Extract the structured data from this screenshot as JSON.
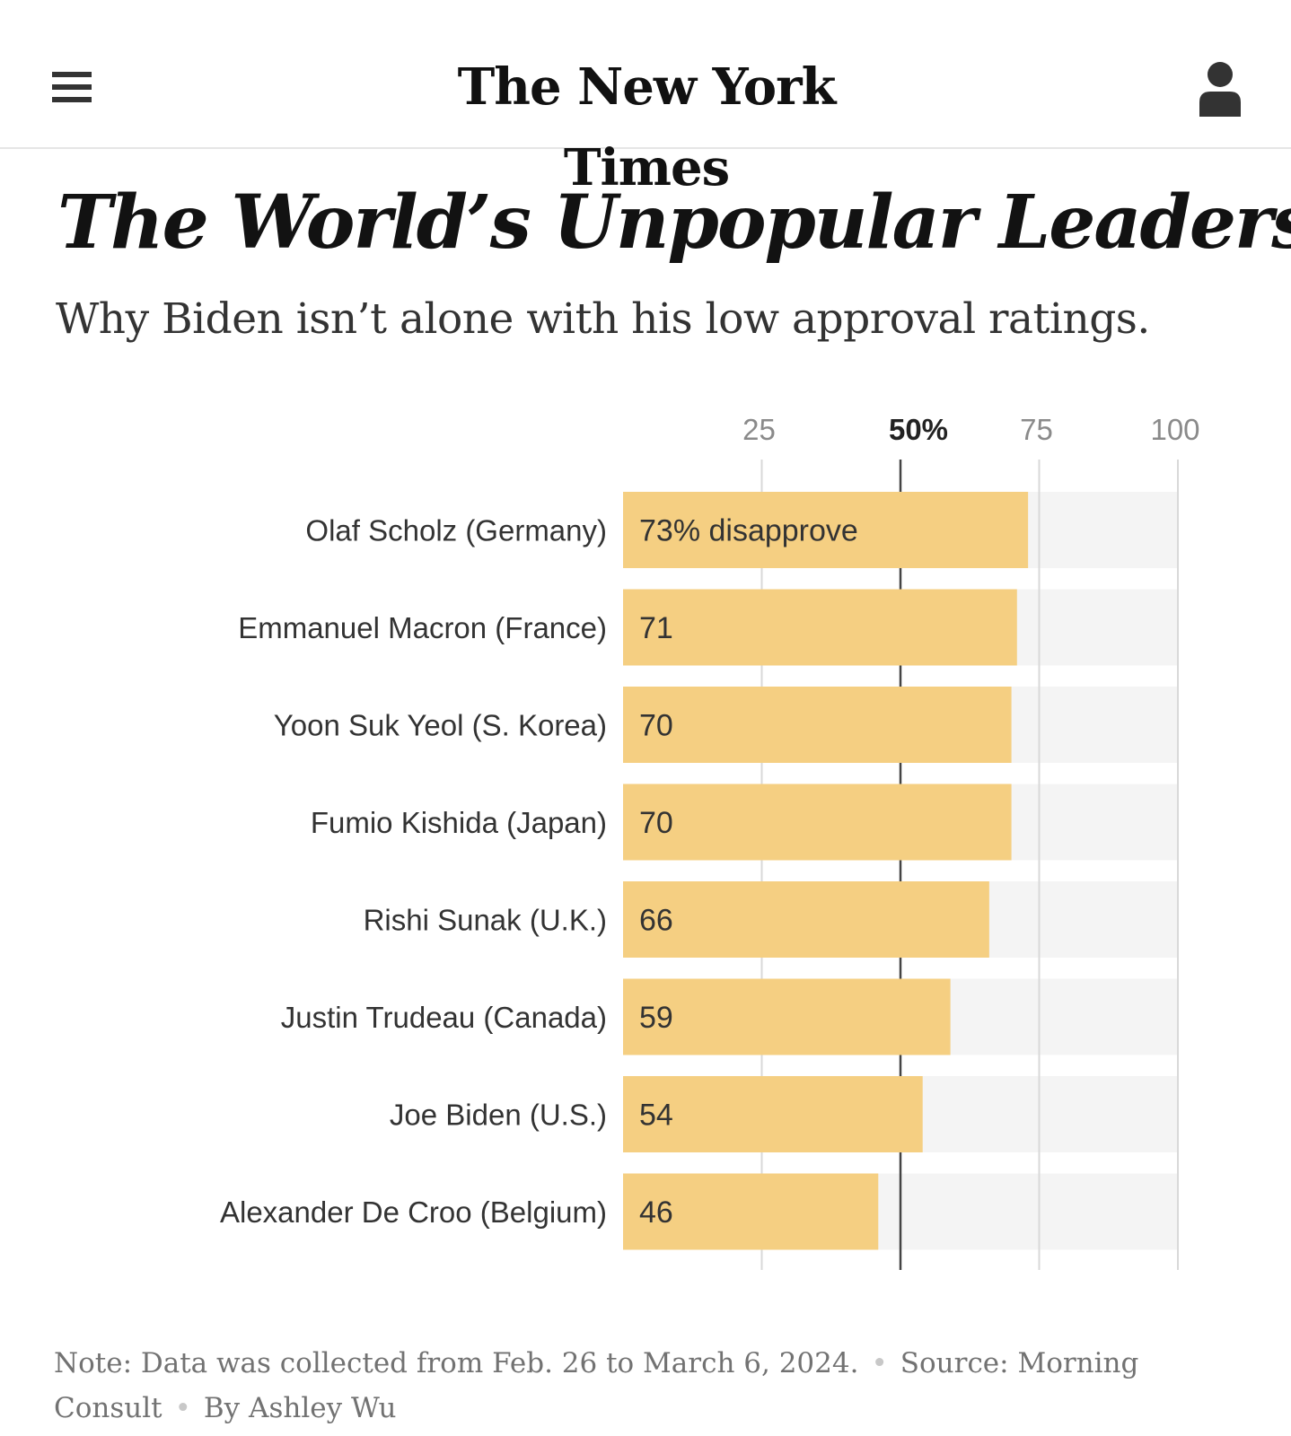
{
  "header": {
    "menu_icon": "hamburger-menu-icon",
    "logo_text": "The New York Times",
    "account_icon": "account-person-icon"
  },
  "article": {
    "title": "The World’s Unpopular Leaders",
    "subtitle": "Why Biden isn’t alone with his low approval ratings."
  },
  "chart_data": {
    "type": "bar",
    "orientation": "horizontal",
    "categories": [
      "Olaf Scholz (Germany)",
      "Emmanuel Macron (France)",
      "Yoon Suk Yeol (S. Korea)",
      "Fumio Kishida (Japan)",
      "Rishi Sunak (U.K.)",
      "Justin Trudeau (Canada)",
      "Joe Biden (U.S.)",
      "Alexander De Croo (Belgium)"
    ],
    "values": [
      73,
      71,
      70,
      70,
      66,
      59,
      54,
      46
    ],
    "data_labels": [
      "73% disapprove",
      "71",
      "70",
      "70",
      "66",
      "59",
      "54",
      "46"
    ],
    "xlim": [
      0,
      100
    ],
    "x_ticks": [
      "25",
      "50%",
      "75",
      "100"
    ],
    "x_tick_values": [
      25,
      50,
      75,
      100
    ],
    "highlight_tick": "50%",
    "grid": true,
    "colors": {
      "bar": "#f5cf82",
      "track": "#f4f4f4",
      "grid": "#d9d9d9",
      "midline": "#444444"
    }
  },
  "footer": {
    "note": "Note: Data was collected from Feb. 26 to March 6, 2024.",
    "source": "Source: Morning Consult",
    "byline": "By Ashley Wu"
  }
}
